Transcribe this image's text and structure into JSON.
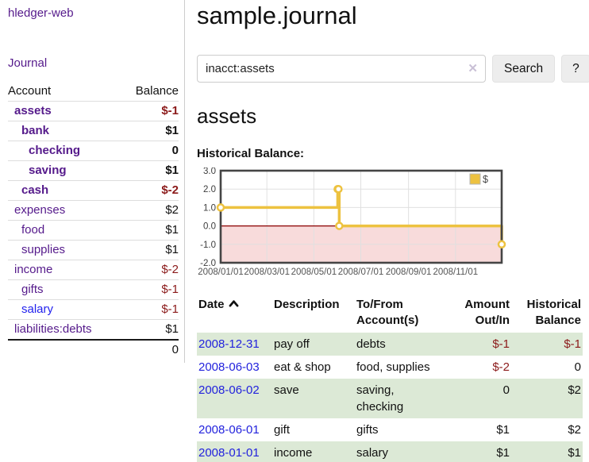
{
  "sidebar": {
    "brand": "hledger-web",
    "nav": {
      "journal": "Journal"
    },
    "account_table": {
      "headers": {
        "account": "Account",
        "balance": "Balance"
      },
      "accounts": [
        {
          "account": "assets",
          "balance": "$-1",
          "depth": 1,
          "bold": true,
          "negative": true,
          "unvisited": false
        },
        {
          "account": "bank",
          "balance": "$1",
          "depth": 2,
          "bold": true,
          "negative": false,
          "unvisited": false
        },
        {
          "account": "checking",
          "balance": "0",
          "depth": 3,
          "bold": true,
          "negative": false,
          "unvisited": false
        },
        {
          "account": "saving",
          "balance": "$1",
          "depth": 3,
          "bold": true,
          "negative": false,
          "unvisited": false
        },
        {
          "account": "cash",
          "balance": "$-2",
          "depth": 2,
          "bold": true,
          "negative": true,
          "unvisited": false
        },
        {
          "account": "expenses",
          "balance": "$2",
          "depth": 1,
          "bold": false,
          "negative": false,
          "unvisited": false
        },
        {
          "account": "food",
          "balance": "$1",
          "depth": 2,
          "bold": false,
          "negative": false,
          "unvisited": false
        },
        {
          "account": "supplies",
          "balance": "$1",
          "depth": 2,
          "bold": false,
          "negative": false,
          "unvisited": false
        },
        {
          "account": "income",
          "balance": "$-2",
          "depth": 1,
          "bold": false,
          "negative": true,
          "unvisited": false
        },
        {
          "account": "gifts",
          "balance": "$-1",
          "depth": 2,
          "bold": false,
          "negative": true,
          "unvisited": false
        },
        {
          "account": "salary",
          "balance": "$-1",
          "depth": 2,
          "bold": false,
          "negative": true,
          "unvisited": true
        },
        {
          "account": "liabilities:debts",
          "balance": "$1",
          "depth": 1,
          "bold": false,
          "negative": false,
          "unvisited": false
        }
      ],
      "total": "0"
    }
  },
  "main": {
    "title": "sample.journal",
    "search": {
      "value": "inacct:assets",
      "clear_icon": "✕",
      "search_button": "Search",
      "help_button": "?"
    },
    "account_heading": "assets",
    "chart_label": "Historical Balance:"
  },
  "chart_data": {
    "type": "line",
    "step": true,
    "title": "Historical Balance",
    "x_domain": [
      "2008-01-01",
      "2008-12-31"
    ],
    "ylim": [
      -2.0,
      3.0
    ],
    "yticks": [
      3.0,
      2.0,
      1.0,
      0.0,
      -1.0,
      -2.0
    ],
    "xticks": [
      {
        "d": "2008-01-01",
        "label": "2008/01/01"
      },
      {
        "d": "2008-03-01",
        "label": "2008/03/01"
      },
      {
        "d": "2008-05-01",
        "label": "2008/05/01"
      },
      {
        "d": "2008-07-01",
        "label": "2008/07/01"
      },
      {
        "d": "2008-09-01",
        "label": "2008/09/01"
      },
      {
        "d": "2008-11-01",
        "label": "2008/11/01"
      }
    ],
    "series": [
      {
        "name": "$",
        "color": "#edc240",
        "points": [
          [
            "2008-01-01",
            1
          ],
          [
            "2008-06-01",
            2
          ],
          [
            "2008-06-02",
            2
          ],
          [
            "2008-06-03",
            0
          ],
          [
            "2008-12-31",
            -1
          ]
        ]
      }
    ],
    "legend": {
      "label": "$",
      "position": "top-right"
    },
    "grid": {
      "border_color": "#454545",
      "gridline_color": "#e0e0e0",
      "zero_line_color": "#8b0000",
      "negative_fill": "#f8dbdb"
    }
  },
  "register": {
    "headers": [
      "Date",
      "Description",
      "To/From Account(s)",
      "Amount Out/In",
      "Historical Balance"
    ],
    "rows": [
      {
        "date": "2008-12-31",
        "description": "pay off",
        "accounts": "debts",
        "amount": "$-1",
        "amount_negative": true,
        "balance": "$-1",
        "balance_negative": true
      },
      {
        "date": "2008-06-03",
        "description": "eat & shop",
        "accounts": "food, supplies",
        "amount": "$-2",
        "amount_negative": true,
        "balance": "0",
        "balance_negative": false
      },
      {
        "date": "2008-06-02",
        "description": "save",
        "accounts": "saving, checking",
        "amount": "0",
        "amount_negative": false,
        "balance": "$2",
        "balance_negative": false
      },
      {
        "date": "2008-06-01",
        "description": "gift",
        "accounts": "gifts",
        "amount": "$1",
        "amount_negative": false,
        "balance": "$2",
        "balance_negative": false
      },
      {
        "date": "2008-01-01",
        "description": "income",
        "accounts": "salary",
        "amount": "$1",
        "amount_negative": false,
        "balance": "$1",
        "balance_negative": false
      }
    ]
  }
}
